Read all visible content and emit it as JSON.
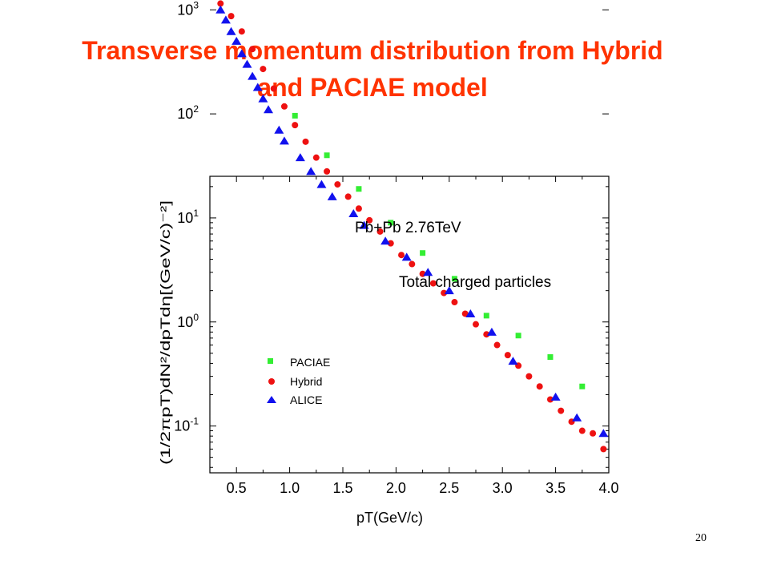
{
  "slide": {
    "title_line1": "Transverse momentum distribution from Hybrid",
    "title_line2": "and PACIAE model",
    "page_number": "20",
    "title_color": "#ff3300"
  },
  "chart_data": {
    "type": "scatter",
    "xlabel": "pT(GeV/c)",
    "ylabel": "(1/2πpT)dN²/dpTdη[(GeV/c)⁻²]",
    "annotations": [
      "Pb+Pb 2.76TeV",
      "Total charged particles"
    ],
    "xlim": [
      0.25,
      4.0
    ],
    "ylim_log10": [
      -1.45,
      1.4
    ],
    "log_y": true,
    "grid": false,
    "legend_position": "lower-left",
    "x_ticks": [
      "0.5",
      "1.0",
      "1.5",
      "2.0",
      "2.5",
      "3.0",
      "3.5",
      "4.0"
    ],
    "x_tick_values": [
      0.5,
      1.0,
      1.5,
      2.0,
      2.5,
      3.0,
      3.5,
      4.0
    ],
    "y_tick_exponents": [
      3,
      2,
      1,
      0,
      -1
    ],
    "series": [
      {
        "name": "PACIAE",
        "marker": "square",
        "color": "#33ee33",
        "x": [
          1.05,
          1.35,
          1.65,
          1.95,
          2.25,
          2.55,
          2.85,
          3.15,
          3.45,
          3.75
        ],
        "y": [
          96,
          40,
          19,
          9,
          4.6,
          2.6,
          1.15,
          0.74,
          0.46,
          0.24
        ]
      },
      {
        "name": "Hybrid",
        "marker": "circle",
        "color": "#ee1111",
        "x": [
          0.35,
          0.45,
          0.55,
          0.65,
          0.75,
          0.85,
          0.95,
          1.05,
          1.15,
          1.25,
          1.35,
          1.45,
          1.55,
          1.65,
          1.75,
          1.85,
          1.95,
          2.05,
          2.15,
          2.25,
          2.35,
          2.45,
          2.55,
          2.65,
          2.75,
          2.85,
          2.95,
          3.05,
          3.15,
          3.25,
          3.35,
          3.45,
          3.55,
          3.65,
          3.75,
          3.85,
          3.95
        ],
        "y": [
          1150,
          870,
          620,
          420,
          270,
          175,
          118,
          78,
          54,
          38,
          28,
          21,
          16,
          12.3,
          9.5,
          7.4,
          5.7,
          4.4,
          3.6,
          2.9,
          2.35,
          1.9,
          1.55,
          1.2,
          0.95,
          0.76,
          0.6,
          0.48,
          0.38,
          0.3,
          0.24,
          0.18,
          0.14,
          0.11,
          0.09,
          0.085,
          0.06
        ]
      },
      {
        "name": "ALICE",
        "marker": "triangle",
        "color": "#1111ee",
        "x": [
          0.35,
          0.4,
          0.45,
          0.5,
          0.55,
          0.6,
          0.65,
          0.7,
          0.75,
          0.8,
          0.9,
          0.95,
          1.1,
          1.2,
          1.3,
          1.4,
          1.6,
          1.7,
          1.9,
          2.1,
          2.3,
          2.5,
          2.7,
          2.9,
          3.1,
          3.5,
          3.7,
          3.95
        ],
        "y": [
          1000,
          800,
          620,
          500,
          380,
          300,
          230,
          180,
          140,
          110,
          70,
          55,
          38,
          28,
          21,
          16,
          11,
          8.5,
          6,
          4.2,
          3,
          2,
          1.2,
          0.8,
          0.42,
          0.19,
          0.12,
          0.085
        ]
      }
    ]
  }
}
